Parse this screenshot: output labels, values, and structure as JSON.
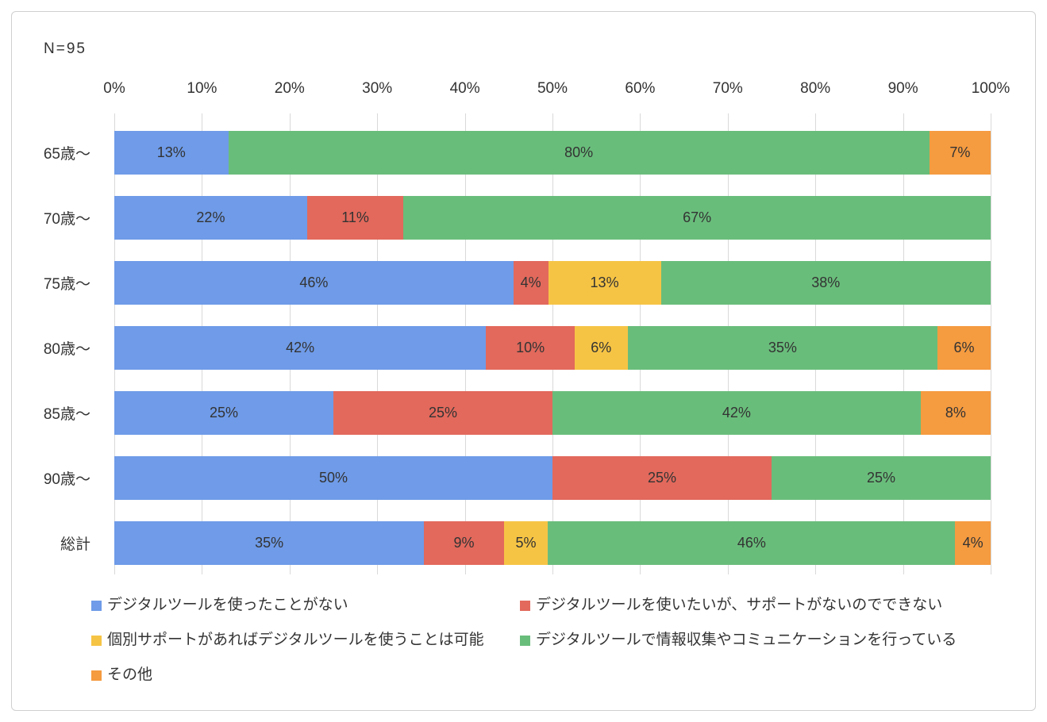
{
  "header": {
    "sample_size": "N=95"
  },
  "chart_data": {
    "type": "bar",
    "orientation": "horizontal",
    "stacked": true,
    "grid": true,
    "legend_position": "bottom",
    "xlim": [
      0,
      100
    ],
    "value_suffix": "%",
    "x_ticks": [
      "0%",
      "10%",
      "20%",
      "30%",
      "40%",
      "50%",
      "60%",
      "70%",
      "80%",
      "90%",
      "100%"
    ],
    "categories": [
      "65歳～",
      "70歳～",
      "75歳～",
      "80歳～",
      "85歳～",
      "90歳～",
      "総計"
    ],
    "series": [
      {
        "name": "デジタルツールを使ったことがない",
        "color": "#6F9BE8",
        "values": [
          13,
          22,
          46,
          42,
          25,
          50,
          35
        ]
      },
      {
        "name": "デジタルツールを使いたいが、サポートがないのでできない",
        "color": "#E2695C",
        "values": [
          0,
          11,
          4,
          10,
          25,
          25,
          9
        ]
      },
      {
        "name": "個別サポートがあればデジタルツールを使うことは可能",
        "color": "#F6C445",
        "values": [
          0,
          0,
          13,
          6,
          0,
          0,
          5
        ]
      },
      {
        "name": "デジタルツールで情報収集やコミュニケーションを行っている",
        "color": "#69BD7B",
        "values": [
          80,
          67,
          38,
          35,
          42,
          25,
          46
        ]
      },
      {
        "name": "その他",
        "color": "#F59B40",
        "values": [
          7,
          0,
          0,
          6,
          8,
          0,
          4
        ]
      }
    ]
  }
}
